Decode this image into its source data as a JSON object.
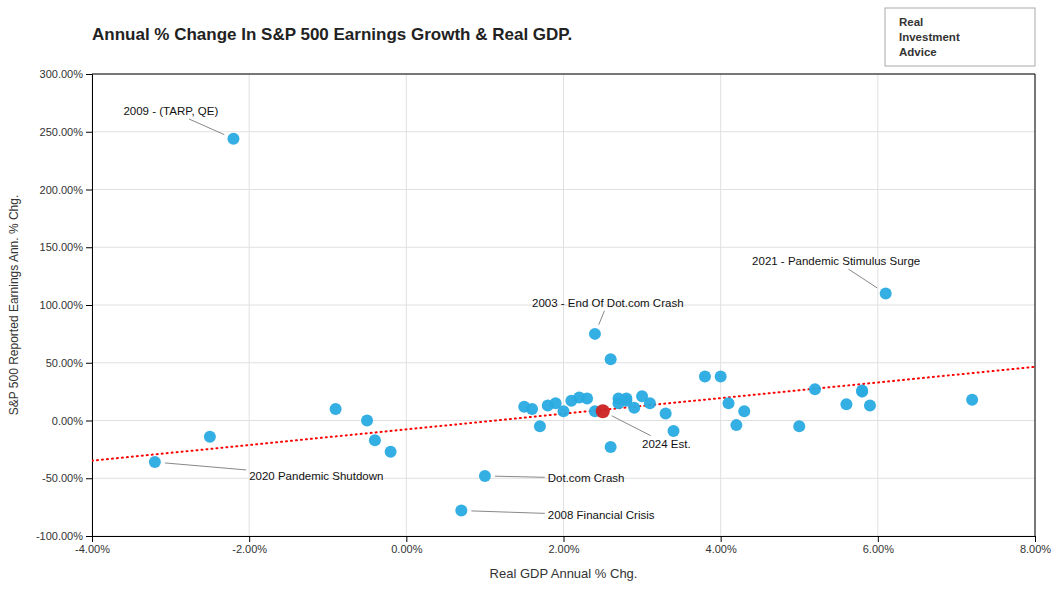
{
  "chart_data": {
    "type": "scatter",
    "title": "Annual % Change In S&P 500 Earnings Growth & Real GDP.",
    "x_label": "Real GDP Annual % Chg.",
    "y_label": "S&P 500 Reported Earnings Ann. % Chg.",
    "x": [
      -0.032,
      -0.025,
      -0.009,
      -0.005,
      -0.004,
      -0.002,
      0.01,
      0.007,
      0.015,
      0.016,
      0.017,
      0.018,
      0.019,
      0.02,
      0.021,
      0.022,
      0.023,
      0.024,
      0.024,
      0.025,
      0.026,
      0.026,
      0.027,
      0.027,
      0.028,
      0.028,
      0.029,
      0.03,
      0.031,
      0.033,
      0.034,
      0.038,
      0.04,
      0.041,
      0.042,
      0.043,
      0.05,
      0.052,
      0.056,
      0.058,
      0.058,
      0.059,
      0.061,
      0.072,
      -0.022
    ],
    "values": [
      -0.36,
      -0.14,
      0.1,
      0.0,
      -0.17,
      -0.27,
      -0.48,
      -0.78,
      0.12,
      0.1,
      -0.05,
      0.13,
      0.15,
      0.08,
      0.17,
      0.2,
      0.19,
      0.08,
      0.75,
      0.08,
      -0.23,
      0.53,
      0.15,
      0.19,
      0.19,
      0.17,
      0.11,
      0.21,
      0.15,
      0.06,
      -0.09,
      0.38,
      0.38,
      0.15,
      -0.04,
      0.08,
      -0.05,
      0.27,
      0.14,
      0.25,
      0.26,
      0.13,
      1.1,
      0.18,
      2.44
    ],
    "colors": [
      "#29abe2",
      "#29abe2",
      "#29abe2",
      "#29abe2",
      "#29abe2",
      "#29abe2",
      "#29abe2",
      "#29abe2",
      "#29abe2",
      "#29abe2",
      "#29abe2",
      "#29abe2",
      "#29abe2",
      "#29abe2",
      "#29abe2",
      "#29abe2",
      "#29abe2",
      "#29abe2",
      "#29abe2",
      "#cc2222",
      "#29abe2",
      "#29abe2",
      "#29abe2",
      "#29abe2",
      "#29abe2",
      "#29abe2",
      "#29abe2",
      "#29abe2",
      "#29abe2",
      "#29abe2",
      "#29abe2",
      "#29abe2",
      "#29abe2",
      "#29abe2",
      "#29abe2",
      "#29abe2",
      "#29abe2",
      "#29abe2",
      "#29abe2",
      "#29abe2",
      "#29abe2",
      "#29abe2",
      "#29abe2",
      "#29abe2",
      "#29abe2"
    ],
    "xlim": [
      -0.04,
      0.08
    ],
    "ylim": [
      -1.0,
      3.0
    ],
    "xticks": [
      {
        "value": -0.04,
        "label": "-4.00%"
      },
      {
        "value": -0.02,
        "label": "-2.00%"
      },
      {
        "value": 0.0,
        "label": "0.00%"
      },
      {
        "value": 0.02,
        "label": "2.00%"
      },
      {
        "value": 0.04,
        "label": "4.00%"
      },
      {
        "value": 0.06,
        "label": "6.00%"
      },
      {
        "value": 0.08,
        "label": "8.00%"
      }
    ],
    "yticks": [
      {
        "value": -1.0,
        "label": "-100.00%"
      },
      {
        "value": -0.5,
        "label": "-50.00%"
      },
      {
        "value": 0.0,
        "label": "0.00%"
      },
      {
        "value": 0.5,
        "label": "50.00%"
      },
      {
        "value": 1.0,
        "label": "100.00%"
      },
      {
        "value": 1.5,
        "label": "150.00%"
      },
      {
        "value": 2.0,
        "label": "200.00%"
      },
      {
        "value": 2.5,
        "label": "250.00%"
      },
      {
        "value": 3.0,
        "label": "300.00%"
      }
    ],
    "grid": true,
    "trendline": {
      "x": [
        -0.04,
        0.08
      ],
      "values": [
        -0.3475,
        0.465
      ],
      "color": "#ff0000",
      "line_style": "dotted"
    },
    "annotations": [
      {
        "text": "2009 - (TARP, QE)",
        "x": -0.022,
        "y": 2.44,
        "text_x": -0.036,
        "text_y": 2.68
      },
      {
        "text": "2020 Pandemic Shutdown",
        "x": -0.032,
        "y": -0.36,
        "text_x": -0.02,
        "text_y": -0.48
      },
      {
        "text": "Dot.com Crash",
        "x": 0.01,
        "y": -0.48,
        "text_x": 0.018,
        "text_y": -0.5
      },
      {
        "text": "2008 Financial Crisis",
        "x": 0.007,
        "y": -0.78,
        "text_x": 0.018,
        "text_y": -0.82
      },
      {
        "text": "2003 - End Of Dot.com Crash",
        "x": 0.024,
        "y": 0.75,
        "text_x": 0.016,
        "text_y": 1.02
      },
      {
        "text": "2024 Est.",
        "x": 0.025,
        "y": 0.08,
        "text_x": 0.03,
        "text_y": -0.2
      },
      {
        "text": "2021 - Pandemic Stimulus Surge",
        "x": 0.061,
        "y": 1.1,
        "text_x": 0.044,
        "text_y": 1.38
      }
    ],
    "logo": [
      "Real",
      "Investment",
      "Advice"
    ]
  }
}
